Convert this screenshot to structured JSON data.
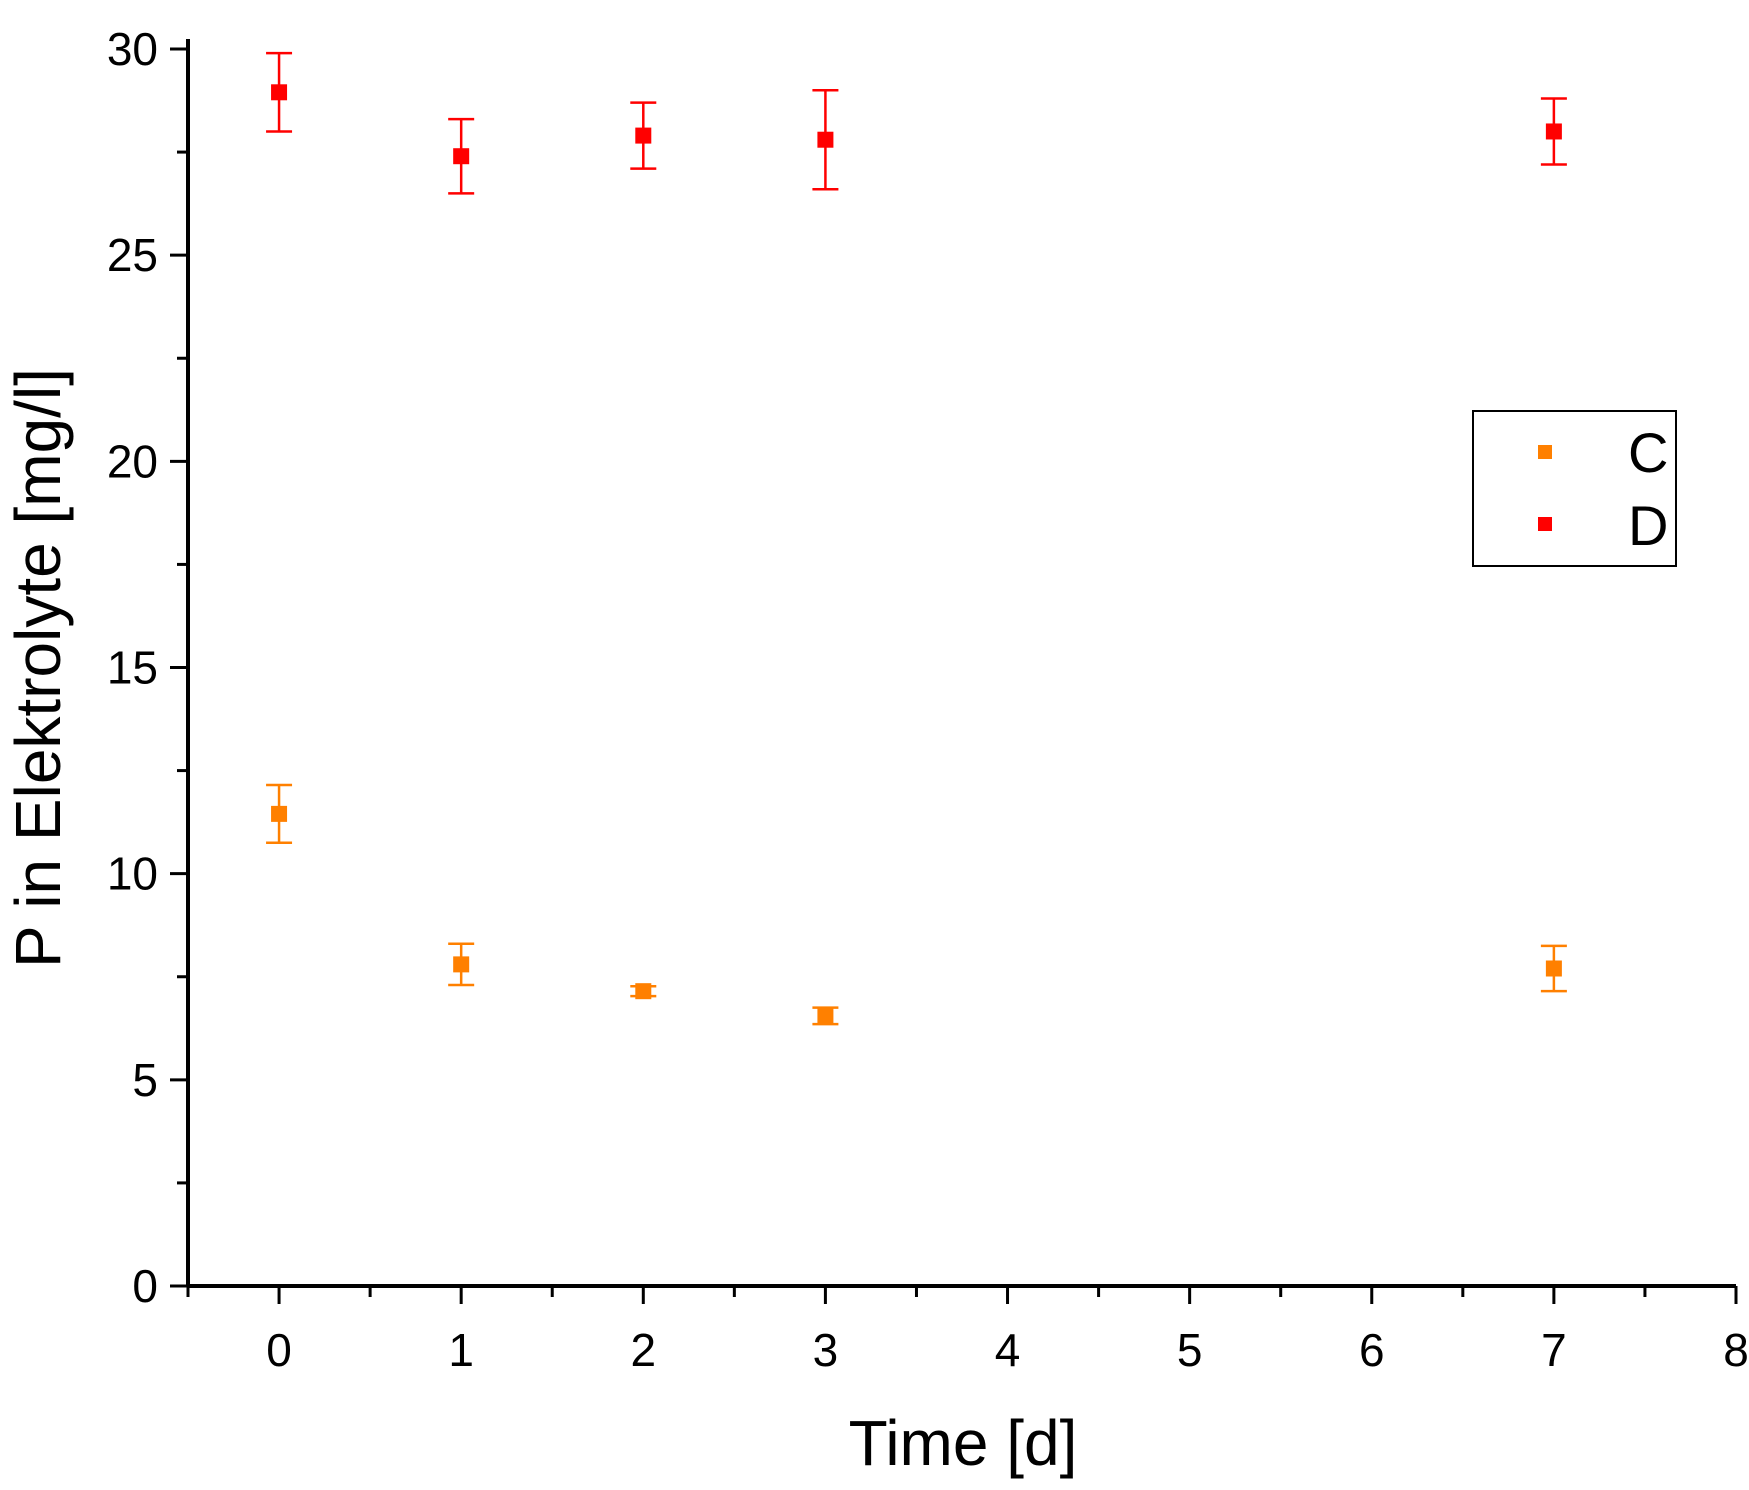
{
  "chart_data": {
    "type": "scatter",
    "title": "",
    "xlabel": "Time [d]",
    "ylabel": "P in Elektrolyte [mg/l]",
    "xlim": [
      -0.5,
      8
    ],
    "ylim": [
      0,
      30
    ],
    "xticks": [
      0,
      1,
      2,
      3,
      4,
      5,
      6,
      7,
      8
    ],
    "yticks": [
      0,
      5,
      10,
      15,
      20,
      25,
      30
    ],
    "grid": false,
    "legend_position": "right",
    "series": [
      {
        "name": "C",
        "color": "#ff8000",
        "marker": "square",
        "points": [
          {
            "x": 0,
            "y": 11.45,
            "err": 0.7
          },
          {
            "x": 1,
            "y": 7.8,
            "err": 0.5
          },
          {
            "x": 2,
            "y": 7.15,
            "err": 0.12
          },
          {
            "x": 3,
            "y": 6.55,
            "err": 0.2
          },
          {
            "x": 7,
            "y": 7.7,
            "err": 0.55
          }
        ]
      },
      {
        "name": "D",
        "color": "#ff0000",
        "marker": "square",
        "points": [
          {
            "x": 0,
            "y": 28.95,
            "err": 0.95
          },
          {
            "x": 1,
            "y": 27.4,
            "err": 0.9
          },
          {
            "x": 2,
            "y": 27.9,
            "err": 0.8
          },
          {
            "x": 3,
            "y": 27.8,
            "err": 1.2
          },
          {
            "x": 7,
            "y": 28.0,
            "err": 0.8
          }
        ]
      }
    ]
  }
}
